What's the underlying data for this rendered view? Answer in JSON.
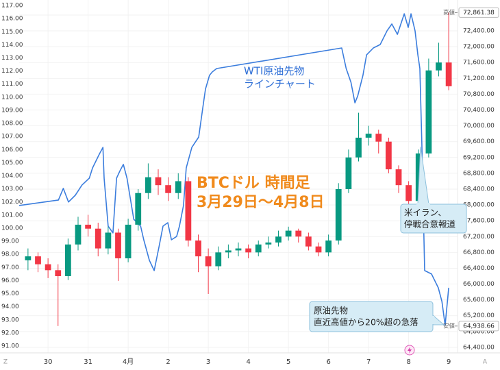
{
  "chart_data": {
    "type": "candlestick",
    "annotations": {
      "wti_title": "WTI原油先物",
      "wti_sub": "ラインチャート",
      "btc_title": "BTCドル 時間足",
      "btc_sub": "3月29日～4月8日",
      "callout_1": [
        "米イラン、",
        "停戦合意報道"
      ],
      "callout_2": [
        "原油先物",
        "直近高値から20%超の急落"
      ]
    },
    "axis_buttons": [
      "Z",
      "A"
    ],
    "axis": "y2",
    "up_color": "#089981",
    "down_color": "#f23645",
    "x": [
      29.5,
      29.75,
      30.0,
      30.25,
      30.5,
      30.75,
      31.0,
      31.25,
      31.5,
      31.75,
      32.0,
      32.25,
      32.5,
      32.75,
      33.0,
      33.25,
      33.5,
      33.75,
      34.0,
      34.25,
      34.5,
      34.75,
      35.0,
      35.25,
      35.5,
      35.75,
      36.0,
      36.25,
      36.5,
      36.75,
      37.0,
      37.25,
      37.5,
      37.75,
      38.0,
      38.25,
      38.5,
      38.75,
      39.0,
      39.25,
      39.5,
      39.75,
      40.0
    ],
    "open": [
      66600,
      66700,
      66500,
      66350,
      66200,
      67000,
      67500,
      67400,
      66900,
      67300,
      66650,
      67500,
      68300,
      68700,
      68500,
      68300,
      68600,
      67100,
      66700,
      66450,
      66800,
      66850,
      66900,
      66800,
      67000,
      67050,
      67200,
      67350,
      67200,
      66950,
      66800,
      67100,
      68400,
      69200,
      69700,
      69800,
      69600,
      68900,
      68500,
      68100,
      69300,
      71400,
      71600
    ],
    "high": [
      66900,
      66800,
      66650,
      66500,
      67150,
      67700,
      67750,
      67550,
      67450,
      67400,
      67650,
      68400,
      69050,
      68900,
      68700,
      68800,
      68700,
      67250,
      66900,
      66950,
      67000,
      67050,
      67000,
      67100,
      67200,
      67350,
      67450,
      67400,
      67300,
      67050,
      67250,
      68550,
      69400,
      70330,
      70000,
      69900,
      69700,
      69000,
      68600,
      69400,
      71700,
      72100,
      72861.38
    ],
    "low": [
      66350,
      66300,
      66150,
      64938.66,
      66100,
      66850,
      67200,
      66700,
      66750,
      66080,
      66550,
      67350,
      68150,
      68250,
      68100,
      68150,
      66950,
      66300,
      65750,
      66350,
      66650,
      66700,
      66650,
      66700,
      66900,
      66950,
      67100,
      67050,
      66850,
      66700,
      66700,
      67000,
      68300,
      69100,
      69500,
      69300,
      68800,
      68300,
      67950,
      68000,
      69200,
      71250,
      70900
    ],
    "close": [
      66700,
      66500,
      66350,
      66200,
      67000,
      67500,
      67400,
      66900,
      67300,
      66650,
      67500,
      68300,
      68700,
      68500,
      68300,
      68600,
      67100,
      66700,
      66450,
      66800,
      66850,
      66900,
      66800,
      67000,
      67050,
      67200,
      67350,
      67200,
      66950,
      66800,
      67100,
      68400,
      69200,
      69700,
      69800,
      69600,
      68900,
      68500,
      68100,
      69300,
      71400,
      71600,
      71000
    ],
    "overlay": {
      "type": "line",
      "axis": "y",
      "color": "#3b7ddd",
      "x": [
        29.28,
        30.26,
        30.38,
        30.51,
        30.68,
        30.85,
        31.03,
        31.11,
        31.28,
        31.37,
        31.4,
        31.5,
        31.62,
        31.71,
        31.79,
        31.88,
        31.97,
        32.14,
        32.31,
        32.39,
        32.53,
        32.65,
        32.77,
        32.87,
        32.99,
        33.08,
        33.21,
        33.28,
        33.38,
        33.45,
        33.59,
        33.76,
        33.88,
        33.93,
        34.03,
        34.1,
        34.21,
        37.33,
        37.44,
        37.56,
        37.66,
        37.73,
        37.86,
        37.95,
        38.12,
        38.29,
        38.46,
        38.58,
        38.72,
        38.89,
        38.99,
        39.06,
        39.16,
        39.23,
        39.28,
        39.33,
        39.4,
        39.57,
        39.74,
        39.83,
        39.91,
        40.0
      ],
      "values": [
        101.73,
        102.15,
        103.04,
        102.0,
        102.51,
        103.3,
        103.82,
        104.6,
        105.65,
        106.17,
        103.82,
        100.16,
        99.64,
        103.82,
        104.34,
        104.87,
        103.82,
        100.68,
        100.16,
        99.11,
        97.54,
        96.76,
        98.59,
        100.16,
        100.42,
        99.11,
        99.37,
        100.16,
        101.73,
        104.6,
        106.17,
        106.96,
        109.57,
        110.62,
        111.67,
        111.93,
        112.19,
        113.76,
        112.19,
        111.14,
        109.57,
        110.1,
        111.67,
        113.23,
        113.76,
        114.02,
        115.06,
        115.59,
        114.8,
        116.37,
        115.33,
        116.37,
        115.06,
        113.23,
        112.19,
        106.44,
        96.76,
        96.5,
        95.45,
        94.41,
        92.58,
        95.45
      ]
    },
    "price_tags": [
      {
        "label": "高値",
        "value": 72861.38,
        "value_label": "72,861.38"
      },
      {
        "label": "安値",
        "value": 64938.66,
        "value_label": "64,938.66"
      }
    ],
    "xlim": [
      29.28,
      40.22
    ],
    "xticks": [
      30,
      31,
      {
        "value": 32,
        "label": "4月"
      },
      {
        "value": 33,
        "label": "2"
      },
      {
        "value": 34,
        "label": "3"
      },
      {
        "value": 35,
        "label": "4"
      },
      {
        "value": 36,
        "label": "5"
      },
      {
        "value": 37,
        "label": "6"
      },
      {
        "value": 38,
        "label": "7"
      },
      {
        "value": 39,
        "label": "8"
      },
      {
        "value": 40,
        "label": "9"
      }
    ],
    "ylim": [
      90.48,
      117.42
    ],
    "yticks": [
      {
        "value": 91,
        "label": "91.00"
      },
      {
        "value": 92,
        "label": "92.00"
      },
      {
        "value": 93,
        "label": "93.00"
      },
      {
        "value": 94,
        "label": "94.00"
      },
      {
        "value": 95,
        "label": "95.00"
      },
      {
        "value": 96,
        "label": "96.00"
      },
      {
        "value": 97,
        "label": "97.00"
      },
      {
        "value": 98,
        "label": "98.00"
      },
      {
        "value": 99,
        "label": "99.00"
      },
      {
        "value": 100,
        "label": "100.00"
      },
      {
        "value": 101,
        "label": "101.00"
      },
      {
        "value": 102,
        "label": "102.00"
      },
      {
        "value": 103,
        "label": "103.00"
      },
      {
        "value": 104,
        "label": "104.00"
      },
      {
        "value": 105,
        "label": "105.00"
      },
      {
        "value": 106,
        "label": "106.00"
      },
      {
        "value": 107,
        "label": "107.00"
      },
      {
        "value": 108,
        "label": "108.00"
      },
      {
        "value": 109,
        "label": "109.00"
      },
      {
        "value": 110,
        "label": "110.00"
      },
      {
        "value": 111,
        "label": "111.00"
      },
      {
        "value": 112,
        "label": "112.00"
      },
      {
        "value": 113,
        "label": "113.00"
      },
      {
        "value": 114,
        "label": "114.00"
      },
      {
        "value": 115,
        "label": "115.00"
      },
      {
        "value": 116,
        "label": "116.00"
      },
      {
        "value": 117,
        "label": "117.00"
      }
    ],
    "y2lim": [
      64260,
      73180
    ],
    "y2ticks": [
      {
        "value": 64400,
        "label": "64,400.00"
      },
      {
        "value": 64800,
        "label": "64,800.00"
      },
      {
        "value": 65200,
        "label": "65,200.00"
      },
      {
        "value": 65600,
        "label": "65,600.00"
      },
      {
        "value": 66000,
        "label": "66,000.00"
      },
      {
        "value": 66400,
        "label": "66,400.00"
      },
      {
        "value": 66800,
        "label": "66,800.00"
      },
      {
        "value": 67200,
        "label": "67,200.00"
      },
      {
        "value": 67600,
        "label": "67,600.00"
      },
      {
        "value": 68000,
        "label": "68,000.00"
      },
      {
        "value": 68400,
        "label": "68,400.00"
      },
      {
        "value": 68800,
        "label": "68,800.00"
      },
      {
        "value": 69200,
        "label": "69,200.00"
      },
      {
        "value": 69600,
        "label": "69,600.00"
      },
      {
        "value": 70000,
        "label": "70,000.00"
      },
      {
        "value": 70400,
        "label": "70,400.00"
      },
      {
        "value": 70800,
        "label": "70,800.00"
      },
      {
        "value": 71200,
        "label": "71,200.00"
      },
      {
        "value": 71600,
        "label": "71,600.00"
      },
      {
        "value": 72000,
        "label": "72,000.00"
      },
      {
        "value": 72400,
        "label": "72,400.00"
      },
      {
        "value": 72800,
        "label": "72,800.00"
      }
    ],
    "grid": true
  }
}
